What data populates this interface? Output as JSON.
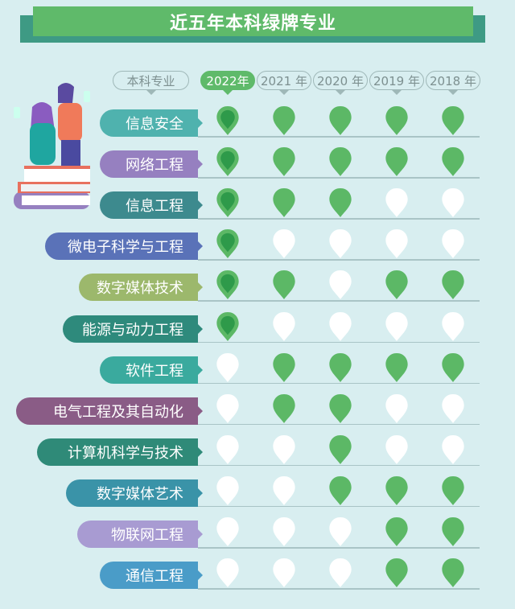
{
  "title": "近五年本科绿牌专业",
  "header": {
    "major_label": "本科专业",
    "years": [
      "2022年",
      "2021 年",
      "2020 年",
      "2019 年",
      "2018 年"
    ],
    "active_year_index": 0
  },
  "colors": {
    "title_bg": "#5fba6a",
    "title_shadow": "#3e9a84",
    "pin_green": "#5cb866",
    "pin_current": "#2e9a4a",
    "pin_empty": "#ffffff",
    "background": "#d8eef0"
  },
  "rows": [
    {
      "major": "信息安全",
      "color": "#4fb2ae",
      "green": [
        true,
        true,
        true,
        true,
        true
      ]
    },
    {
      "major": "网络工程",
      "color": "#9680c0",
      "green": [
        true,
        true,
        true,
        true,
        true
      ]
    },
    {
      "major": "信息工程",
      "color": "#3d8a8e",
      "green": [
        true,
        true,
        true,
        false,
        false
      ]
    },
    {
      "major": "微电子科学与工程",
      "color": "#5a72b8",
      "green": [
        true,
        false,
        false,
        false,
        false
      ]
    },
    {
      "major": "数字媒体技术",
      "color": "#9cb86c",
      "green": [
        true,
        true,
        false,
        true,
        true
      ]
    },
    {
      "major": "能源与动力工程",
      "color": "#2e8a7c",
      "green": [
        true,
        false,
        false,
        false,
        false
      ]
    },
    {
      "major": "软件工程",
      "color": "#3aaa9e",
      "green": [
        false,
        true,
        true,
        true,
        true
      ]
    },
    {
      "major": "电气工程及其自动化",
      "color": "#8a5c86",
      "green": [
        false,
        true,
        true,
        false,
        false
      ]
    },
    {
      "major": "计算机科学与技术",
      "color": "#2f8a78",
      "green": [
        false,
        false,
        true,
        false,
        false
      ]
    },
    {
      "major": "数字媒体艺术",
      "color": "#3a93a8",
      "green": [
        false,
        false,
        true,
        true,
        true
      ]
    },
    {
      "major": "物联网工程",
      "color": "#a89bd2",
      "green": [
        false,
        false,
        false,
        true,
        true
      ]
    },
    {
      "major": "通信工程",
      "color": "#4a9cc8",
      "green": [
        false,
        false,
        false,
        true,
        true
      ]
    }
  ]
}
